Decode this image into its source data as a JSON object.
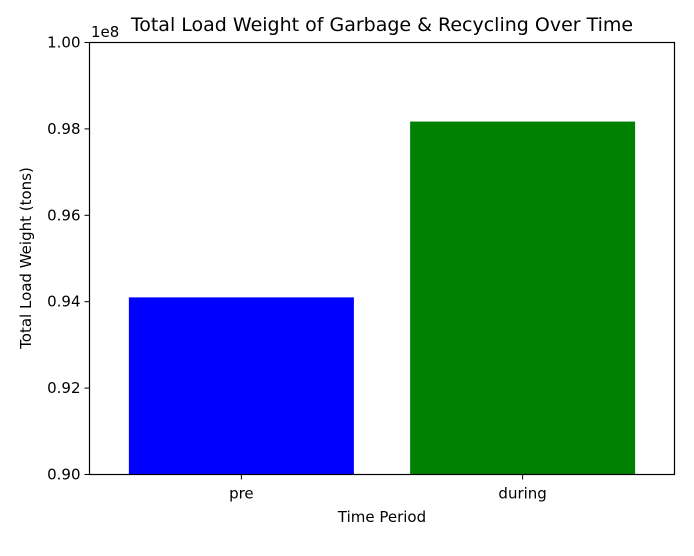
{
  "chart_data": {
    "type": "bar",
    "title": "Total Load Weight of Garbage & Recycling Over Time",
    "xlabel": "Time Period",
    "ylabel": "Total Load Weight (tons)",
    "offset_label": "1e8",
    "categories": [
      "pre",
      "during"
    ],
    "values": [
      94100000,
      98170000
    ],
    "colors": [
      "#0000ff",
      "#008000"
    ],
    "ylim": [
      90000000,
      100000000
    ],
    "yticks": [
      90000000,
      92000000,
      94000000,
      96000000,
      98000000,
      100000000
    ],
    "ytick_labels": [
      "0.90",
      "0.92",
      "0.94",
      "0.96",
      "0.98",
      "1.00"
    ],
    "grid": false,
    "legend": "none"
  }
}
